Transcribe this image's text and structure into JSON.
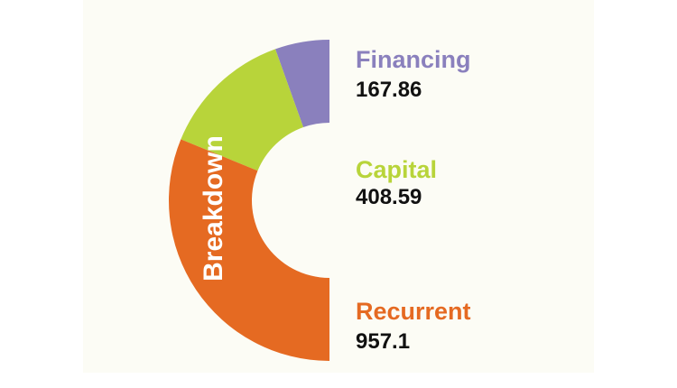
{
  "chart_data": {
    "type": "pie",
    "title": "Breakdown",
    "categories": [
      "Financing",
      "Capital",
      "Recurrent"
    ],
    "values": [
      167.86,
      408.59,
      957.1
    ],
    "value_labels": [
      "167.86",
      "408.59",
      "957.1"
    ],
    "colors": [
      "#8a80bd",
      "#b8d43a",
      "#e56a22"
    ],
    "style": "half-donut, left side"
  }
}
